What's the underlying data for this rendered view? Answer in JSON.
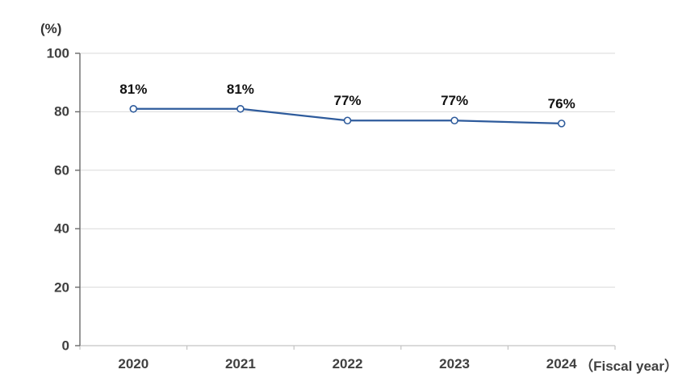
{
  "chart_data": {
    "type": "line",
    "categories": [
      "2020",
      "2021",
      "2022",
      "2023",
      "2024"
    ],
    "values": [
      81,
      81,
      77,
      77,
      76
    ],
    "data_labels": [
      "81%",
      "81%",
      "77%",
      "77%",
      "76%"
    ],
    "ylabel": "(%)",
    "xlabel": "（Fiscal year）",
    "ylim": [
      0,
      100
    ],
    "yticks": [
      0,
      20,
      40,
      60,
      80,
      100
    ],
    "grid": true,
    "legend": false,
    "marker": "open-circle",
    "colors": {
      "line": "#2e5b9c",
      "marker_fill": "#ffffff",
      "grid": "#d9d9d9",
      "y_axis": "#6a6a6a",
      "x_axis": "#c3c3c3",
      "axis_text": "#404040",
      "data_label_text": "#111111"
    }
  }
}
